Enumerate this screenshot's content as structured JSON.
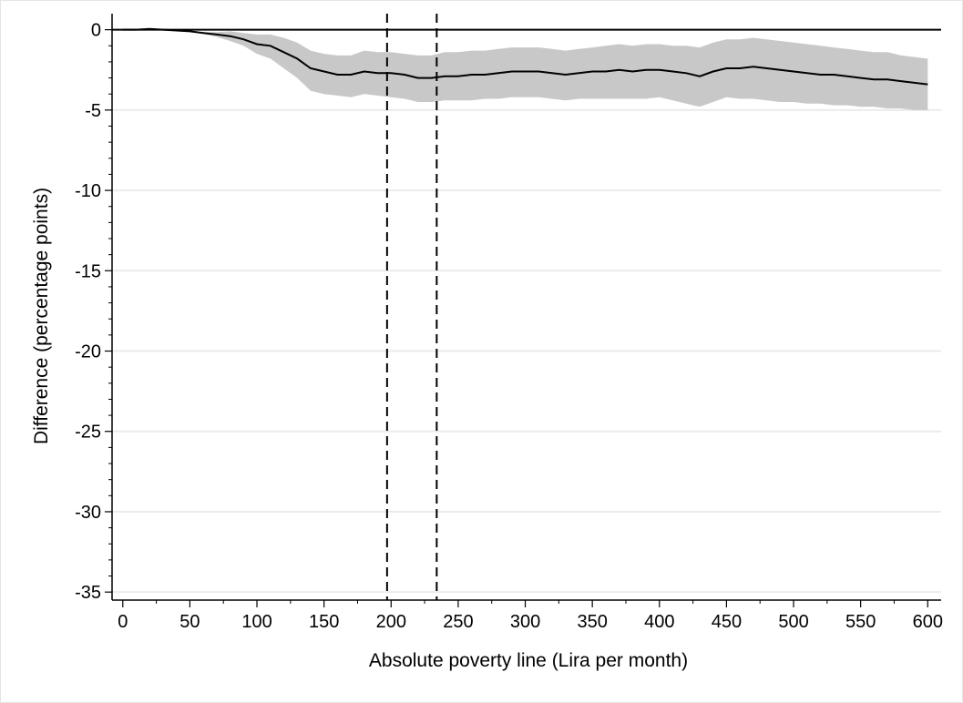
{
  "chart_data": {
    "type": "line",
    "title": "",
    "xlabel": "Absolute poverty line (Lira per month)",
    "ylabel": "Difference (percentage points)",
    "xlim": [
      -8,
      610
    ],
    "ylim": [
      -35.5,
      1
    ],
    "x_ticks": [
      0,
      50,
      100,
      150,
      200,
      250,
      300,
      350,
      400,
      450,
      500,
      550,
      600
    ],
    "x_minor_ticks": [
      25,
      75,
      125,
      175,
      225,
      275,
      325,
      375,
      425,
      475,
      525,
      575
    ],
    "y_ticks": [
      0,
      -5,
      -10,
      -15,
      -20,
      -25,
      -30,
      -35
    ],
    "y_minor_ticks": [
      -1,
      -2,
      -3,
      -4,
      -6,
      -7,
      -8,
      -9,
      -11,
      -12,
      -13,
      -14,
      -16,
      -17,
      -18,
      -19,
      -21,
      -22,
      -23,
      -24,
      -26,
      -27,
      -28,
      -29,
      -31,
      -32,
      -33,
      -34
    ],
    "grid": "horizontal",
    "zero_line": 0,
    "vertical_lines": [
      197,
      234
    ],
    "colors": {
      "line": "#000000",
      "band": "#c8c8c8",
      "grid": "#ebebeb"
    },
    "series": [
      {
        "x": [
          0,
          10,
          20,
          30,
          40,
          50,
          60,
          70,
          80,
          90,
          100,
          110,
          120,
          130,
          140,
          150,
          160,
          170,
          180,
          190,
          200,
          210,
          220,
          230,
          240,
          250,
          260,
          270,
          280,
          290,
          300,
          310,
          320,
          330,
          340,
          350,
          360,
          370,
          380,
          390,
          400,
          410,
          420,
          430,
          440,
          450,
          460,
          470,
          480,
          490,
          500,
          510,
          520,
          530,
          540,
          550,
          560,
          570,
          580,
          590,
          600
        ],
        "y": [
          0,
          0,
          0.05,
          0,
          -0.05,
          -0.1,
          -0.2,
          -0.3,
          -0.4,
          -0.6,
          -0.9,
          -1.0,
          -1.4,
          -1.8,
          -2.4,
          -2.6,
          -2.8,
          -2.8,
          -2.6,
          -2.7,
          -2.7,
          -2.8,
          -3.0,
          -3.0,
          -2.9,
          -2.9,
          -2.8,
          -2.8,
          -2.7,
          -2.6,
          -2.6,
          -2.6,
          -2.7,
          -2.8,
          -2.7,
          -2.6,
          -2.6,
          -2.5,
          -2.6,
          -2.5,
          -2.5,
          -2.6,
          -2.7,
          -2.9,
          -2.6,
          -2.4,
          -2.4,
          -2.3,
          -2.4,
          -2.5,
          -2.6,
          -2.7,
          -2.8,
          -2.8,
          -2.9,
          -3.0,
          -3.1,
          -3.1,
          -3.2,
          -3.3,
          -3.4
        ],
        "lower": [
          0,
          0,
          0.05,
          0,
          -0.05,
          -0.1,
          -0.25,
          -0.45,
          -0.7,
          -1.0,
          -1.5,
          -1.8,
          -2.4,
          -3.0,
          -3.8,
          -4.0,
          -4.1,
          -4.2,
          -4.0,
          -4.1,
          -4.2,
          -4.3,
          -4.5,
          -4.5,
          -4.4,
          -4.4,
          -4.4,
          -4.3,
          -4.3,
          -4.2,
          -4.2,
          -4.2,
          -4.3,
          -4.4,
          -4.3,
          -4.3,
          -4.3,
          -4.3,
          -4.3,
          -4.3,
          -4.2,
          -4.4,
          -4.6,
          -4.8,
          -4.5,
          -4.2,
          -4.3,
          -4.3,
          -4.4,
          -4.5,
          -4.5,
          -4.6,
          -4.6,
          -4.7,
          -4.7,
          -4.8,
          -4.8,
          -4.9,
          -4.9,
          -5.0,
          -5.0
        ],
        "upper": [
          0,
          0,
          0.05,
          0,
          -0.05,
          -0.1,
          -0.15,
          -0.15,
          -0.1,
          -0.2,
          -0.3,
          -0.3,
          -0.5,
          -0.8,
          -1.3,
          -1.5,
          -1.6,
          -1.6,
          -1.3,
          -1.4,
          -1.4,
          -1.5,
          -1.6,
          -1.6,
          -1.4,
          -1.4,
          -1.3,
          -1.3,
          -1.2,
          -1.1,
          -1.1,
          -1.1,
          -1.2,
          -1.3,
          -1.2,
          -1.1,
          -1.0,
          -0.9,
          -1.0,
          -0.9,
          -0.9,
          -1.0,
          -1.0,
          -1.1,
          -0.8,
          -0.6,
          -0.6,
          -0.5,
          -0.6,
          -0.7,
          -0.8,
          -0.9,
          -1.0,
          -1.1,
          -1.2,
          -1.3,
          -1.4,
          -1.4,
          -1.6,
          -1.7,
          -1.8
        ]
      }
    ]
  }
}
